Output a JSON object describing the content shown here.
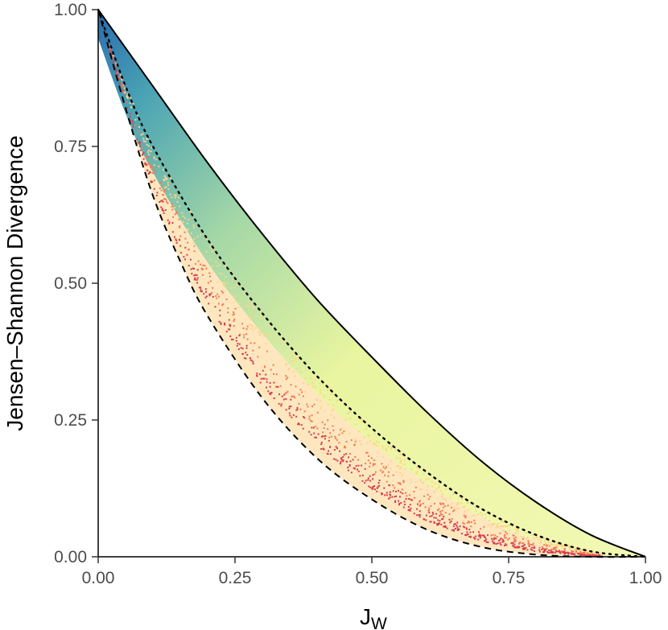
{
  "chart_data": {
    "type": "heatmap",
    "title": "",
    "xlabel": "J",
    "xlabel_sub": "W",
    "ylabel": "Jensen–Shannon Divergence",
    "xlim": [
      0,
      1
    ],
    "ylim": [
      0,
      1
    ],
    "x_ticks": [
      0,
      0.25,
      0.5,
      0.75,
      1
    ],
    "y_ticks": [
      0,
      0.25,
      0.5,
      0.75,
      1
    ],
    "x_tick_labels": [
      "0.00",
      "0.25",
      "0.50",
      "0.75",
      "1.00"
    ],
    "y_tick_labels": [
      "0.00",
      "0.25",
      "0.50",
      "0.75",
      "1.00"
    ],
    "grid": false,
    "legend": "none",
    "curves": [
      {
        "style": "solid",
        "points": [
          [
            0,
            1
          ],
          [
            0.1,
            0.86
          ],
          [
            0.2,
            0.72
          ],
          [
            0.3,
            0.59
          ],
          [
            0.4,
            0.47
          ],
          [
            0.5,
            0.365
          ],
          [
            0.6,
            0.265
          ],
          [
            0.7,
            0.175
          ],
          [
            0.8,
            0.1
          ],
          [
            0.9,
            0.04
          ],
          [
            1,
            0
          ]
        ]
      },
      {
        "style": "dotted",
        "points": [
          [
            0,
            1
          ],
          [
            0.05,
            0.86
          ],
          [
            0.1,
            0.75
          ],
          [
            0.2,
            0.58
          ],
          [
            0.3,
            0.445
          ],
          [
            0.4,
            0.33
          ],
          [
            0.5,
            0.235
          ],
          [
            0.6,
            0.155
          ],
          [
            0.7,
            0.088
          ],
          [
            0.8,
            0.04
          ],
          [
            0.9,
            0.01
          ],
          [
            1,
            0
          ]
        ]
      },
      {
        "style": "dashed",
        "points": [
          [
            0,
            1
          ],
          [
            0.05,
            0.82
          ],
          [
            0.1,
            0.66
          ],
          [
            0.15,
            0.54
          ],
          [
            0.2,
            0.44
          ],
          [
            0.3,
            0.29
          ],
          [
            0.4,
            0.18
          ],
          [
            0.5,
            0.105
          ],
          [
            0.6,
            0.05
          ],
          [
            0.7,
            0.018
          ],
          [
            0.8,
            0.004
          ],
          [
            0.9,
            0.0
          ],
          [
            1,
            0
          ]
        ]
      }
    ],
    "density_colors": {
      "high": "#2b6cad",
      "mid_high": "#4aa3b4",
      "mid": "#a5d8a6",
      "low": "#e9f5a0",
      "very_low": "#fdd38a",
      "sparse": "#f47a52",
      "sparsest": "#d53e4f"
    }
  }
}
